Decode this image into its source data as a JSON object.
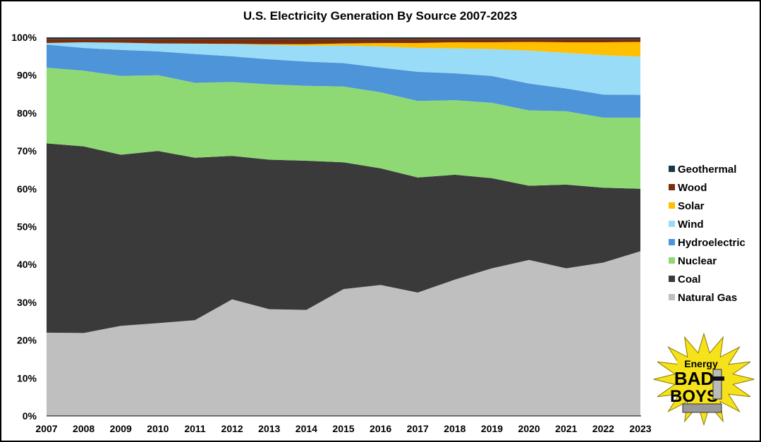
{
  "chart_data": {
    "type": "area",
    "stacked": true,
    "title": "U.S. Electricity Generation By Source 2007-2023",
    "xlabel": "",
    "ylabel": "",
    "ylim": [
      0,
      100
    ],
    "y_ticks": [
      "0%",
      "10%",
      "20%",
      "30%",
      "40%",
      "50%",
      "60%",
      "70%",
      "80%",
      "90%",
      "100%"
    ],
    "x": [
      "2007",
      "2008",
      "2009",
      "2010",
      "2011",
      "2012",
      "2013",
      "2014",
      "2015",
      "2016",
      "2017",
      "2018",
      "2019",
      "2020",
      "2021",
      "2022",
      "2023"
    ],
    "legend_position": "right",
    "grid": false,
    "series": [
      {
        "name": "Natural Gas",
        "color": "#bfbfbf",
        "values": [
          22,
          21.9,
          23.8,
          24.5,
          25.3,
          30.8,
          28.2,
          28,
          33.5,
          34.6,
          32.6,
          36,
          39,
          41.2,
          39,
          40.5,
          43.5
        ]
      },
      {
        "name": "Coal",
        "color": "#3a3a3a",
        "values": [
          50,
          49.3,
          45.2,
          45.5,
          42.9,
          37.9,
          39.5,
          39.4,
          33.5,
          30.8,
          30.4,
          27.7,
          23.8,
          19.6,
          22.1,
          19.8,
          16.5
        ]
      },
      {
        "name": "Nuclear",
        "color": "#8fd975",
        "values": [
          20,
          20,
          20.8,
          20,
          19.8,
          19.5,
          19.9,
          19.8,
          20,
          20.1,
          20.2,
          19.7,
          19.9,
          19.9,
          19.4,
          18.5,
          18.8
        ]
      },
      {
        "name": "Hydroelectric",
        "color": "#4e94d8",
        "values": [
          6.1,
          6,
          6.9,
          6.3,
          7.6,
          6.8,
          6.6,
          6.4,
          6.2,
          6.5,
          7.7,
          7.1,
          7.1,
          7.1,
          6,
          6.1,
          6
        ]
      },
      {
        "name": "Wind",
        "color": "#99dcf8",
        "values": [
          0.4,
          1.5,
          1.9,
          2.1,
          2.7,
          3.2,
          3.8,
          4.2,
          4.6,
          5.6,
          6.3,
          6.6,
          7.1,
          8.7,
          9.4,
          10.4,
          10.1
        ]
      },
      {
        "name": "Solar",
        "color": "#ffc000",
        "values": [
          0,
          0,
          0,
          0,
          0.05,
          0.1,
          0.2,
          0.4,
          0.6,
          0.9,
          1.3,
          1.6,
          1.8,
          2.3,
          2.8,
          3.4,
          3.9
        ]
      },
      {
        "name": "Wood",
        "color": "#7b2e0e",
        "values": [
          1.1,
          0.9,
          1.0,
          1.2,
          1.25,
          1.3,
          1.4,
          1.4,
          1.2,
          1.1,
          1.1,
          0.9,
          0.9,
          0.8,
          0.9,
          0.9,
          0.8
        ]
      },
      {
        "name": "Geothermal",
        "color": "#17394a",
        "values": [
          0.4,
          0.4,
          0.4,
          0.4,
          0.4,
          0.4,
          0.4,
          0.4,
          0.4,
          0.4,
          0.4,
          0.4,
          0.4,
          0.4,
          0.4,
          0.4,
          0.4
        ]
      }
    ]
  },
  "logo": {
    "text_top": "Energy",
    "text_mid": "BAD",
    "text_bottom": "BOYS"
  }
}
